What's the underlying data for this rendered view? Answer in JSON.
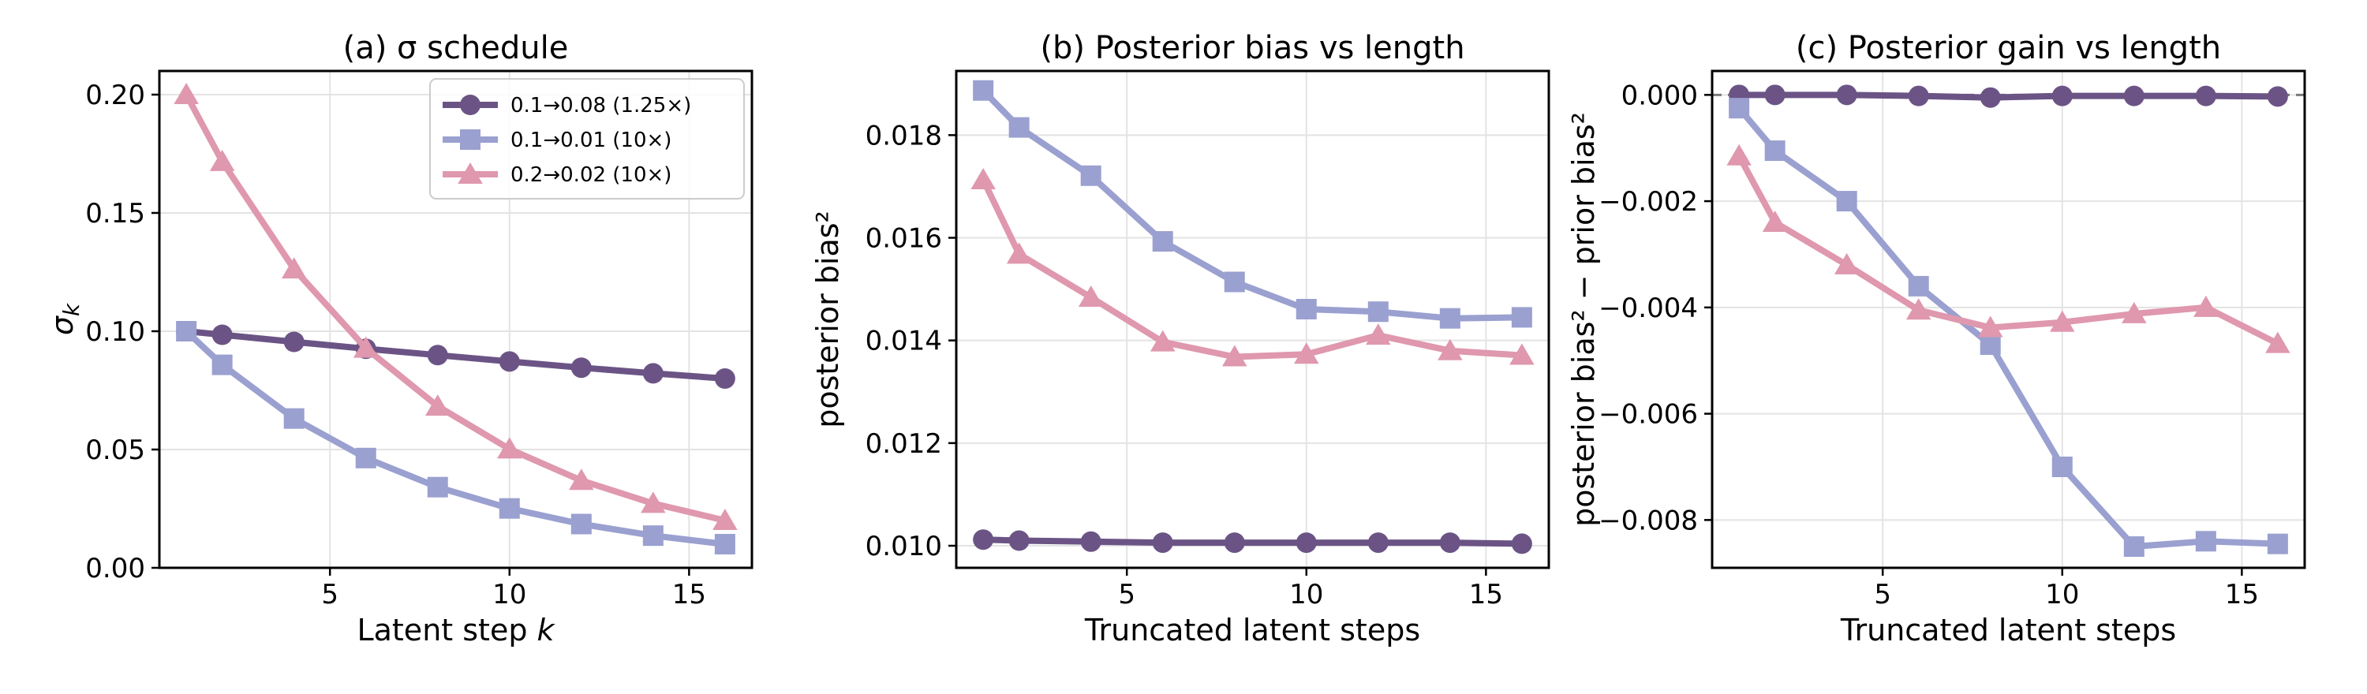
{
  "colors": {
    "series1": "#6b5485",
    "series2": "#9aa0cf",
    "series3": "#df98ae",
    "grid": "#e3e3e3",
    "zero_line": "#7a7a7a"
  },
  "chart_data": [
    {
      "type": "line",
      "title": "(a) σ schedule",
      "xlabel": "Latent step k",
      "ylabel": "σk",
      "xlim": [
        0.25,
        16.75
      ],
      "ylim": [
        0,
        0.21
      ],
      "xticks": [
        5,
        10,
        15
      ],
      "yticks": [
        0.0,
        0.05,
        0.1,
        0.15,
        0.2
      ],
      "ytick_labels": [
        "0.00",
        "0.05",
        "0.10",
        "0.15",
        "0.20"
      ],
      "grid": true,
      "legend": "top-right",
      "series": [
        {
          "name": "0.1→0.08 (1.25×)",
          "marker": "circle",
          "color": "#6b5485",
          "x": [
            1,
            2,
            4,
            6,
            8,
            10,
            12,
            14,
            16
          ],
          "y": [
            0.1,
            0.0985,
            0.0955,
            0.0926,
            0.0899,
            0.0872,
            0.0846,
            0.0822,
            0.08
          ]
        },
        {
          "name": "0.1→0.01 (10×)",
          "marker": "square",
          "color": "#9aa0cf",
          "x": [
            1,
            2,
            4,
            6,
            8,
            10,
            12,
            14,
            16
          ],
          "y": [
            0.1,
            0.0858,
            0.0631,
            0.0464,
            0.0341,
            0.0251,
            0.0185,
            0.0136,
            0.01
          ]
        },
        {
          "name": "0.2→0.02 (10×)",
          "marker": "triangle",
          "color": "#df98ae",
          "x": [
            1,
            2,
            4,
            6,
            8,
            10,
            12,
            14,
            16
          ],
          "y": [
            0.2,
            0.1717,
            0.1263,
            0.0928,
            0.0683,
            0.0502,
            0.0369,
            0.0272,
            0.02
          ]
        }
      ]
    },
    {
      "type": "line",
      "title": "(b) Posterior bias vs length",
      "xlabel": "Truncated latent steps",
      "ylabel": "posterior bias²",
      "xlim": [
        0.25,
        16.75
      ],
      "ylim": [
        0.00957,
        0.01925
      ],
      "xticks": [
        5,
        10,
        15
      ],
      "yticks": [
        0.01,
        0.012,
        0.014,
        0.016,
        0.018
      ],
      "ytick_labels": [
        "0.010",
        "0.012",
        "0.014",
        "0.016",
        "0.018"
      ],
      "grid": true,
      "series": [
        {
          "marker": "circle",
          "color": "#6b5485",
          "x": [
            1,
            2,
            4,
            6,
            8,
            10,
            12,
            14,
            16
          ],
          "y": [
            0.01012,
            0.0101,
            0.01008,
            0.01006,
            0.01006,
            0.01006,
            0.01006,
            0.01006,
            0.01004
          ]
        },
        {
          "marker": "square",
          "color": "#9aa0cf",
          "x": [
            1,
            2,
            4,
            6,
            8,
            10,
            12,
            14,
            16
          ],
          "y": [
            0.01887,
            0.01815,
            0.01721,
            0.01593,
            0.01514,
            0.01461,
            0.01456,
            0.01443,
            0.01445
          ]
        },
        {
          "marker": "triangle",
          "color": "#df98ae",
          "x": [
            1,
            2,
            4,
            6,
            8,
            10,
            12,
            14,
            16
          ],
          "y": [
            0.01713,
            0.01568,
            0.01484,
            0.01397,
            0.01368,
            0.01373,
            0.0141,
            0.0138,
            0.01371
          ]
        }
      ]
    },
    {
      "type": "line",
      "title": "(c) Posterior gain vs length",
      "xlabel": "Truncated latent steps",
      "ylabel": "posterior bias² − prior bias²",
      "xlim": [
        0.25,
        16.75
      ],
      "ylim": [
        -0.0089,
        0.00045
      ],
      "xticks": [
        5,
        10,
        15
      ],
      "yticks": [
        0.0,
        -0.002,
        -0.004,
        -0.006,
        -0.008
      ],
      "ytick_labels": [
        "0.000",
        "−0.002",
        "−0.004",
        "−0.006",
        "−0.008"
      ],
      "grid": true,
      "zero_line": true,
      "series": [
        {
          "marker": "circle",
          "color": "#6b5485",
          "x": [
            1,
            2,
            4,
            6,
            8,
            10,
            12,
            14,
            16
          ],
          "y": [
            0.0,
            0.0,
            0.0,
            -2e-05,
            -5e-05,
            -2e-05,
            -2e-05,
            -2e-05,
            -3e-05
          ]
        },
        {
          "marker": "square",
          "color": "#9aa0cf",
          "x": [
            1,
            2,
            4,
            6,
            8,
            10,
            12,
            14,
            16
          ],
          "y": [
            -0.00025,
            -0.00105,
            -0.002,
            -0.0036,
            -0.0047,
            -0.007,
            -0.0085,
            -0.0084,
            -0.00845
          ]
        },
        {
          "marker": "triangle",
          "color": "#df98ae",
          "x": [
            1,
            2,
            4,
            6,
            8,
            10,
            12,
            14,
            16
          ],
          "y": [
            -0.00115,
            -0.0024,
            -0.0032,
            -0.00405,
            -0.00438,
            -0.00428,
            -0.00412,
            -0.004,
            -0.00468
          ]
        }
      ]
    }
  ]
}
